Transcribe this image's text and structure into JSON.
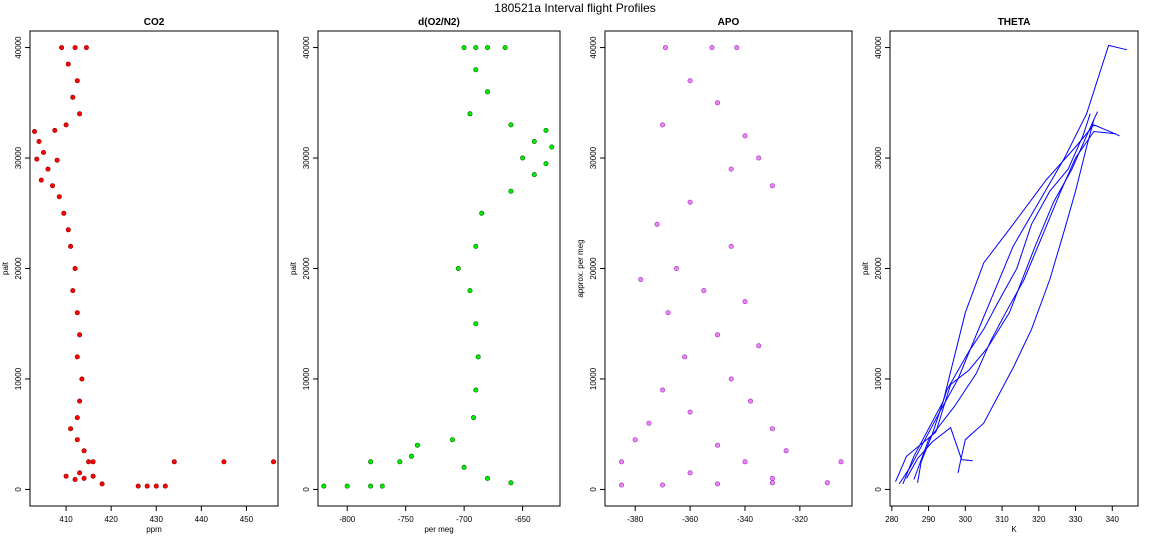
{
  "figure_title": "180521a   Interval flight Profiles",
  "chart_data": [
    {
      "type": "scatter",
      "title": "CO2",
      "xlabel": "ppm",
      "ylabel": "palt",
      "xlim": [
        402,
        457
      ],
      "ylim": [
        -1500,
        41500
      ],
      "xticks": [
        410,
        420,
        430,
        440,
        450
      ],
      "yticks": [
        0,
        10000,
        20000,
        30000,
        40000
      ],
      "point_color": "#ff0000",
      "outline_color": "#8b0000",
      "series": [
        {
          "values": [
            [
              409.0,
              40000
            ],
            [
              412.0,
              40000
            ],
            [
              414.5,
              40000
            ],
            [
              410.5,
              38500
            ],
            [
              412.5,
              37000
            ],
            [
              411.5,
              35500
            ],
            [
              413.0,
              34000
            ],
            [
              410.0,
              33000
            ],
            [
              407.5,
              32500
            ],
            [
              403.0,
              32400
            ],
            [
              404.0,
              31500
            ],
            [
              405.0,
              30500
            ],
            [
              403.5,
              29900
            ],
            [
              408.0,
              29800
            ],
            [
              406.0,
              29000
            ],
            [
              404.5,
              28000
            ],
            [
              407.0,
              27500
            ],
            [
              408.5,
              26500
            ],
            [
              409.5,
              25000
            ],
            [
              410.5,
              23500
            ],
            [
              411.0,
              22000
            ],
            [
              412.0,
              20000
            ],
            [
              411.5,
              18000
            ],
            [
              412.5,
              16000
            ],
            [
              413.0,
              14000
            ],
            [
              412.5,
              12000
            ],
            [
              413.5,
              10000
            ],
            [
              413.0,
              8000
            ],
            [
              412.5,
              6500
            ],
            [
              411.0,
              5500
            ],
            [
              412.5,
              4500
            ],
            [
              414.0,
              3500
            ],
            [
              415.0,
              2500
            ],
            [
              416.0,
              2500
            ],
            [
              413.0,
              1500
            ],
            [
              410.0,
              1200
            ],
            [
              412.0,
              900
            ],
            [
              414.0,
              1000
            ],
            [
              416.0,
              1200
            ],
            [
              418.0,
              500
            ],
            [
              426.0,
              300
            ],
            [
              428.0,
              300
            ],
            [
              430.0,
              300
            ],
            [
              432.0,
              300
            ],
            [
              434.0,
              2500
            ],
            [
              445.0,
              2500
            ],
            [
              456.0,
              2500
            ]
          ]
        }
      ]
    },
    {
      "type": "scatter",
      "title": "d(O2/N2)",
      "xlabel": "per meg",
      "ylabel": "palt",
      "xlim": [
        -825,
        -618
      ],
      "ylim": [
        -1500,
        41500
      ],
      "xticks": [
        -800,
        -750,
        -700,
        -650
      ],
      "yticks": [
        0,
        10000,
        20000,
        30000,
        40000
      ],
      "point_color": "#00ee00",
      "outline_color": "#006400",
      "series": [
        {
          "values": [
            [
              -700,
              40000
            ],
            [
              -690,
              40000
            ],
            [
              -680,
              40000
            ],
            [
              -665,
              40000
            ],
            [
              -690,
              38000
            ],
            [
              -680,
              36000
            ],
            [
              -695,
              34000
            ],
            [
              -660,
              33000
            ],
            [
              -630,
              32500
            ],
            [
              -640,
              31500
            ],
            [
              -625,
              31000
            ],
            [
              -650,
              30000
            ],
            [
              -630,
              29500
            ],
            [
              -640,
              28500
            ],
            [
              -660,
              27000
            ],
            [
              -685,
              25000
            ],
            [
              -690,
              22000
            ],
            [
              -705,
              20000
            ],
            [
              -695,
              18000
            ],
            [
              -690,
              15000
            ],
            [
              -688,
              12000
            ],
            [
              -690,
              9000
            ],
            [
              -692,
              6500
            ],
            [
              -710,
              4500
            ],
            [
              -740,
              4000
            ],
            [
              -745,
              3000
            ],
            [
              -755,
              2500
            ],
            [
              -700,
              2000
            ],
            [
              -680,
              1000
            ],
            [
              -660,
              600
            ],
            [
              -820,
              300
            ],
            [
              -800,
              300
            ],
            [
              -780,
              300
            ],
            [
              -770,
              300
            ],
            [
              -780,
              2500
            ]
          ]
        }
      ]
    },
    {
      "type": "scatter",
      "title": "APO",
      "xlabel": "",
      "ylabel": "approx. per meg",
      "xlim": [
        -391,
        -301
      ],
      "ylim": [
        -1500,
        41500
      ],
      "xticks": [
        -380,
        -360,
        -340,
        -320
      ],
      "yticks": [
        0,
        10000,
        20000,
        30000,
        40000
      ],
      "point_color": "#ee82ee",
      "outline_color": "#9932cc",
      "series": [
        {
          "values": [
            [
              -369,
              40000
            ],
            [
              -352,
              40000
            ],
            [
              -343,
              40000
            ],
            [
              -360,
              37000
            ],
            [
              -350,
              35000
            ],
            [
              -370,
              33000
            ],
            [
              -340,
              32000
            ],
            [
              -335,
              30000
            ],
            [
              -345,
              29000
            ],
            [
              -330,
              27500
            ],
            [
              -360,
              26000
            ],
            [
              -372,
              24000
            ],
            [
              -345,
              22000
            ],
            [
              -365,
              20000
            ],
            [
              -378,
              19000
            ],
            [
              -355,
              18000
            ],
            [
              -340,
              17000
            ],
            [
              -368,
              16000
            ],
            [
              -350,
              14000
            ],
            [
              -335,
              13000
            ],
            [
              -362,
              12000
            ],
            [
              -345,
              10000
            ],
            [
              -370,
              9000
            ],
            [
              -338,
              8000
            ],
            [
              -360,
              7000
            ],
            [
              -375,
              6000
            ],
            [
              -330,
              5500
            ],
            [
              -380,
              4500
            ],
            [
              -350,
              4000
            ],
            [
              -325,
              3500
            ],
            [
              -385,
              2500
            ],
            [
              -340,
              2500
            ],
            [
              -305,
              2500
            ],
            [
              -360,
              1500
            ],
            [
              -330,
              1000
            ],
            [
              -385,
              400
            ],
            [
              -370,
              400
            ],
            [
              -350,
              500
            ],
            [
              -330,
              600
            ],
            [
              -310,
              600
            ]
          ]
        }
      ]
    },
    {
      "type": "line",
      "title": "THETA",
      "xlabel": "K",
      "ylabel": "palt",
      "xlim": [
        279.5,
        347
      ],
      "ylim": [
        -1500,
        41500
      ],
      "xticks": [
        280,
        290,
        300,
        310,
        320,
        330,
        340
      ],
      "yticks": [
        0,
        10000,
        20000,
        30000,
        40000
      ],
      "line_color": "#0000ff",
      "series": [
        {
          "values": [
            [
              282,
              500
            ],
            [
              285,
              2000
            ],
            [
              289,
              4500
            ],
            [
              293,
              7000
            ],
            [
              298,
              10000
            ],
            [
              303,
              14000
            ],
            [
              308,
              18000
            ],
            [
              313,
              22000
            ],
            [
              320,
              26000
            ],
            [
              327,
              30000
            ],
            [
              333,
              34000
            ],
            [
              339,
              40200
            ],
            [
              344,
              39800
            ]
          ]
        },
        {
          "values": [
            [
              283,
              500
            ],
            [
              286,
              3000
            ],
            [
              290,
              5500
            ],
            [
              294,
              8000
            ],
            [
              297,
              12000
            ],
            [
              300,
              16000
            ],
            [
              305,
              20500
            ],
            [
              313,
              24000
            ],
            [
              322,
              28000
            ],
            [
              330,
              31000
            ],
            [
              335,
              33000
            ],
            [
              340,
              32300
            ],
            [
              342,
              32000
            ]
          ]
        },
        {
          "values": [
            [
              287,
              600
            ],
            [
              288,
              2500
            ],
            [
              291,
              5000
            ],
            [
              295,
              9000
            ],
            [
              301,
              12500
            ],
            [
              305,
              14500
            ],
            [
              309,
              17000
            ],
            [
              314,
              20000
            ],
            [
              318,
              24000
            ],
            [
              323,
              27000
            ],
            [
              328,
              29000
            ],
            [
              332,
              32000
            ],
            [
              334,
              34000
            ]
          ]
        },
        {
          "values": [
            [
              286,
              900
            ],
            [
              290,
              4500
            ],
            [
              297,
              7500
            ],
            [
              303,
              10500
            ],
            [
              307,
              13500
            ],
            [
              311,
              16000
            ],
            [
              316,
              19000
            ],
            [
              321,
              23000
            ],
            [
              326,
              27000
            ],
            [
              330,
              30000
            ],
            [
              335,
              32400
            ],
            [
              341,
              32200
            ]
          ]
        },
        {
          "values": [
            [
              281,
              700
            ],
            [
              284,
              3000
            ],
            [
              292,
              5200
            ],
            [
              296,
              9500
            ],
            [
              301,
              10800
            ],
            [
              306,
              12800
            ],
            [
              312,
              16000
            ],
            [
              319,
              22000
            ],
            [
              324,
              26000
            ],
            [
              329,
              29000
            ],
            [
              335,
              33500
            ],
            [
              336,
              34200
            ]
          ]
        },
        {
          "values": [
            [
              298,
              1500
            ],
            [
              299,
              3000
            ],
            [
              300,
              4500
            ],
            [
              305,
              6000
            ],
            [
              309,
              8500
            ],
            [
              313,
              11000
            ],
            [
              318,
              14500
            ],
            [
              323,
              19000
            ],
            [
              327,
              23500
            ],
            [
              330,
              27000
            ],
            [
              333,
              31000
            ],
            [
              335,
              33500
            ]
          ]
        },
        {
          "values": [
            [
              284,
              1000
            ],
            [
              287,
              2800
            ],
            [
              291,
              4300
            ],
            [
              296,
              5600
            ],
            [
              299,
              2700
            ],
            [
              302,
              2600
            ]
          ]
        }
      ]
    }
  ]
}
